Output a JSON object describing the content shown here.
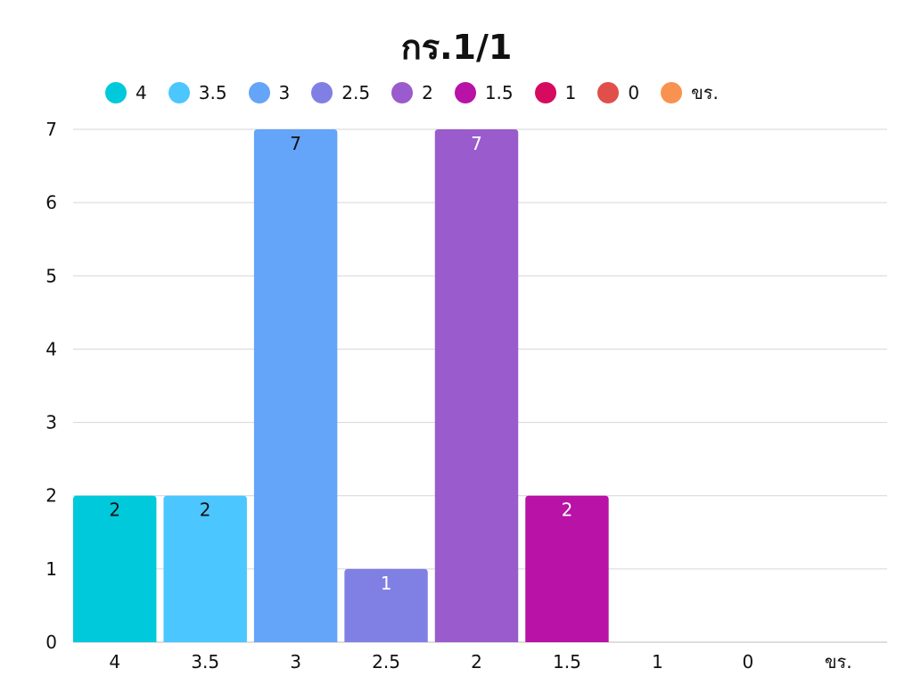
{
  "chart_data": {
    "type": "bar",
    "title": "กร.1/1",
    "xlabel": "",
    "ylabel": "",
    "categories": [
      "4",
      "3.5",
      "3",
      "2.5",
      "2",
      "1.5",
      "1",
      "0",
      "ขร."
    ],
    "values": [
      2,
      2,
      7,
      1,
      7,
      2,
      0,
      0,
      0
    ],
    "colors": [
      "#00c9dc",
      "#4bc6ff",
      "#64a4f9",
      "#8080e4",
      "#9a5bcc",
      "#b812a6",
      "#d60a5e",
      "#e04f4a",
      "#f99250"
    ],
    "label_colors": [
      "#111111",
      "#111111",
      "#111111",
      "#ffffff",
      "#ffffff",
      "#ffffff",
      "#ffffff",
      "#ffffff",
      "#ffffff"
    ],
    "legend": [
      "4",
      "3.5",
      "3",
      "2.5",
      "2",
      "1.5",
      "1",
      "0",
      "ขร."
    ],
    "legend_position": "top",
    "ylim": [
      0,
      7
    ],
    "yticks": [
      0,
      1,
      2,
      3,
      4,
      5,
      6,
      7
    ],
    "grid": true
  }
}
